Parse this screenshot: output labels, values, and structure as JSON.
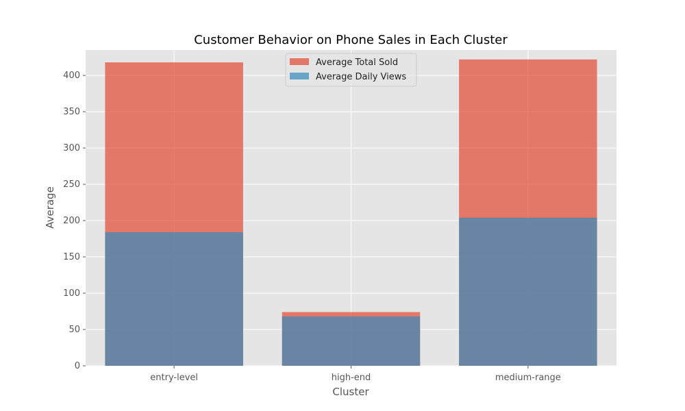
{
  "chart_data": {
    "type": "bar",
    "title": "Customer Behavior on Phone Sales in Each Cluster",
    "xlabel": "Cluster",
    "ylabel": "Average",
    "categories": [
      "entry-level",
      "high-end",
      "medium-range"
    ],
    "series": [
      {
        "name": "Average Total Sold",
        "values": [
          418,
          74,
          422
        ],
        "color": "#e24a33"
      },
      {
        "name": "Average Daily Views",
        "values": [
          184,
          68,
          204
        ],
        "color": "#348abd"
      }
    ],
    "ylim": [
      0,
      435
    ],
    "yticks": [
      0,
      50,
      100,
      150,
      200,
      250,
      300,
      350,
      400
    ],
    "grid": true,
    "legend_position": "top-center",
    "background": "#e5e5e5",
    "overlaid": true,
    "bar_alpha": 0.7
  }
}
